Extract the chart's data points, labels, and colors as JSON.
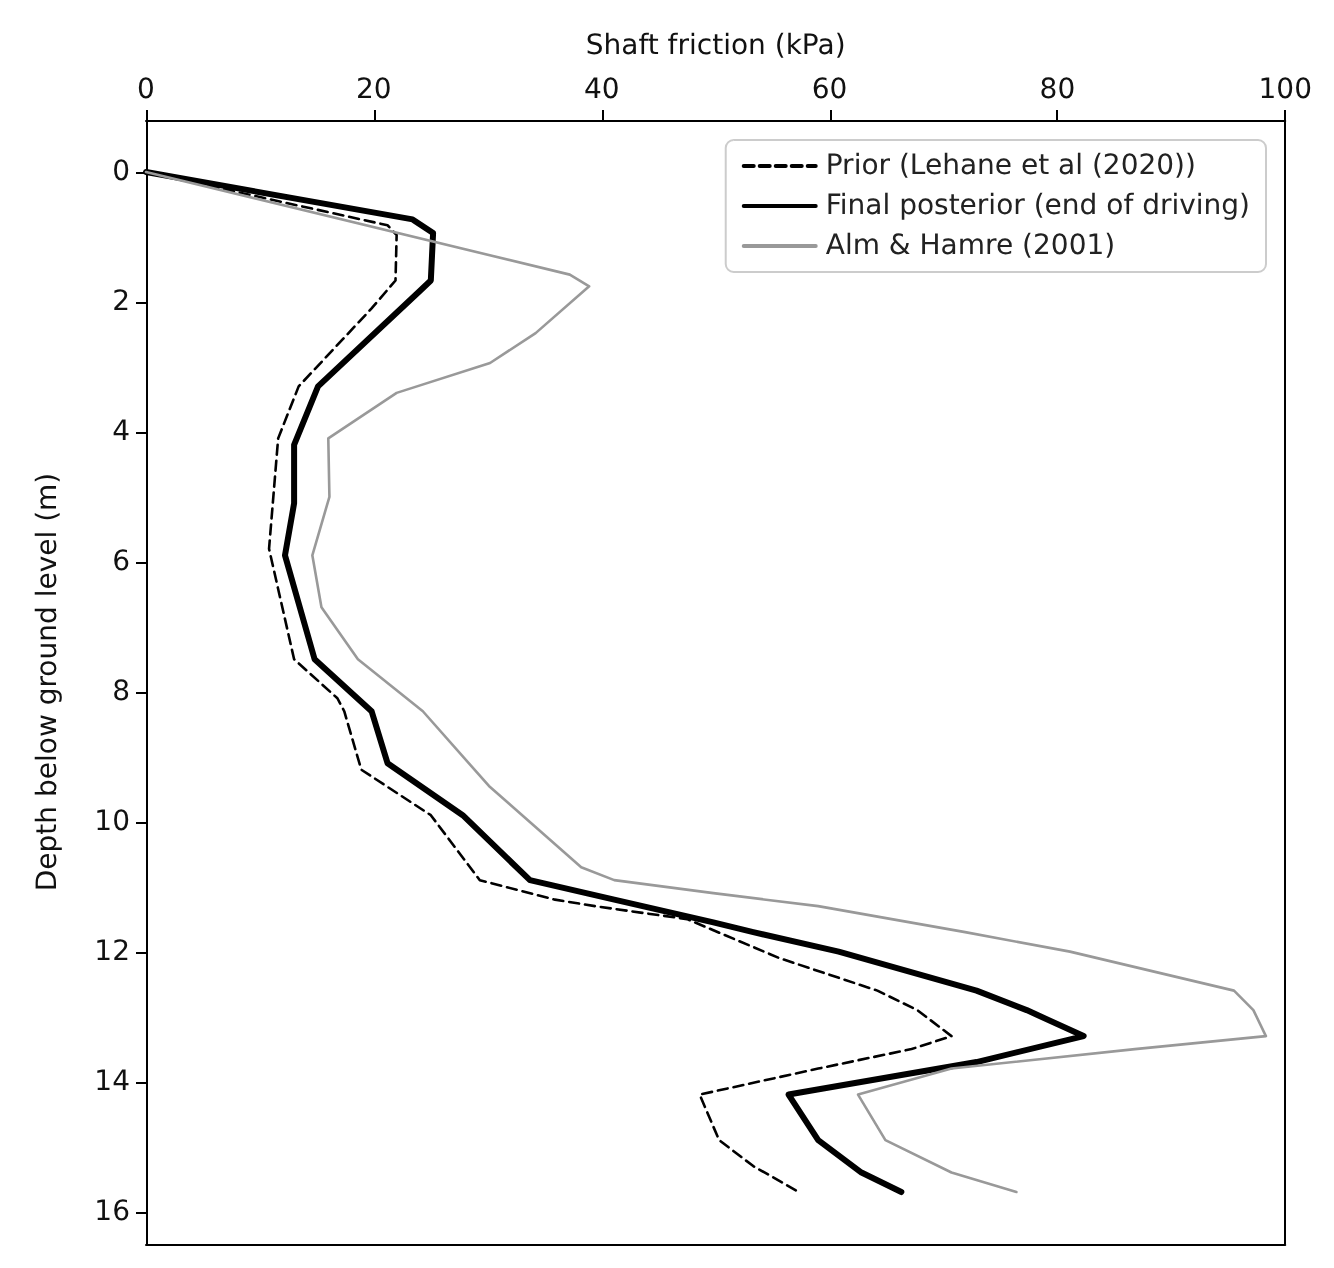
{
  "chart_data": {
    "type": "line",
    "xlabel": "Shaft friction (kPa)",
    "ylabel": "Depth below ground level (m)",
    "xlim": [
      0,
      100
    ],
    "xticks": [
      0,
      20,
      40,
      60,
      80,
      100
    ],
    "ylim": [
      16.5,
      -0.8
    ],
    "yticks": [
      0,
      2,
      4,
      6,
      8,
      10,
      12,
      14,
      16
    ],
    "grid": false,
    "legend": "top right",
    "marker": "none",
    "series": [
      {
        "name": "Prior (Lehane et al (2020))",
        "color": "#000000",
        "line_style": "dashed",
        "x": [
          0,
          21.2,
          22,
          21.9,
          19.8,
          13.4,
          11.6,
          10.8,
          13.0,
          16.8,
          17.4,
          18.9,
          25,
          29.3,
          35.9,
          39.4,
          47.5,
          55.6,
          64.2,
          67.7,
          70.7,
          67.2,
          59.0,
          48.6,
          50.3,
          53.3,
          57.3
        ],
        "values": [
          0,
          0.82,
          0.97,
          1.67,
          2.1,
          3.3,
          4.1,
          5.8,
          7.5,
          8.1,
          8.3,
          9.2,
          9.9,
          10.9,
          11.2,
          11.3,
          11.5,
          12.1,
          12.6,
          12.9,
          13.3,
          13.5,
          13.8,
          14.2,
          14.9,
          15.3,
          15.7
        ]
      },
      {
        "name": "Final posterior (end of driving)",
        "color": "#000000",
        "line_style": "solid",
        "x": [
          0,
          23.4,
          25.2,
          25,
          24.1,
          15.1,
          13.0,
          13,
          12.2,
          14.8,
          19.8,
          21.2,
          27.8,
          33.7,
          41.1,
          49.8,
          53.3,
          60.8,
          72.9,
          77.3,
          82.3,
          72.9,
          56.4,
          59.0,
          62.8,
          66.3
        ],
        "values": [
          0,
          0.73,
          0.94,
          1.67,
          1.82,
          3.3,
          4.2,
          5.1,
          5.9,
          7.5,
          8.3,
          9.1,
          9.9,
          10.9,
          11.2,
          11.55,
          11.7,
          12.0,
          12.6,
          12.9,
          13.3,
          13.7,
          14.2,
          14.9,
          15.4,
          15.7
        ]
      },
      {
        "name": "Alm & Hamre (2001)",
        "color": "#999999",
        "line_style": "solid",
        "x": [
          0,
          37.2,
          38.9,
          34.2,
          30.2,
          22,
          16,
          16.1,
          14.6,
          15.4,
          18.6,
          24.3,
          30.1,
          38.2,
          41.1,
          49.8,
          59.0,
          71.9,
          81.1,
          95.5,
          97.2,
          98.3,
          86.8,
          70.7,
          62.5,
          64.9,
          70.7,
          76.4
        ],
        "values": [
          0,
          1.58,
          1.76,
          2.48,
          2.94,
          3.4,
          4.1,
          5.0,
          5.9,
          6.7,
          7.5,
          8.3,
          9.45,
          10.7,
          10.9,
          11.1,
          11.3,
          11.7,
          12.0,
          12.6,
          12.9,
          13.3,
          13.5,
          13.8,
          14.2,
          14.9,
          15.4,
          15.7
        ]
      }
    ]
  }
}
